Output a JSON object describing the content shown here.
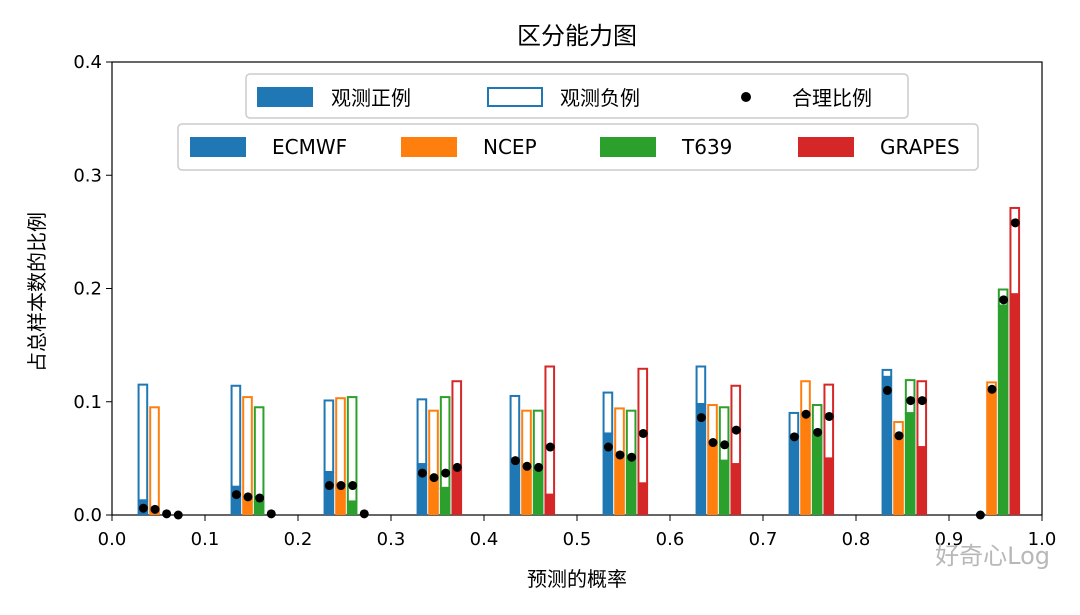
{
  "chart_data": {
    "type": "bar",
    "title": "区分能力图",
    "xlabel": "预测的概率",
    "ylabel": "占总样本数的比例",
    "xlim": [
      0.0,
      1.0
    ],
    "ylim": [
      0.0,
      0.4
    ],
    "xticks": [
      "0.0",
      "0.1",
      "0.2",
      "0.3",
      "0.4",
      "0.5",
      "0.6",
      "0.7",
      "0.8",
      "0.9",
      "1.0"
    ],
    "yticks": [
      "0.0",
      "0.1",
      "0.2",
      "0.3",
      "0.4"
    ],
    "bin_centers": [
      0.05,
      0.15,
      0.25,
      0.35,
      0.45,
      0.55,
      0.65,
      0.75,
      0.85,
      0.95
    ],
    "legend_stack": {
      "entries": [
        {
          "label": "观测正例",
          "style": "filled"
        },
        {
          "label": "观测负例",
          "style": "outline"
        },
        {
          "label": "合理比例",
          "style": "dot"
        }
      ],
      "position": "top"
    },
    "legend_models": {
      "entries": [
        "ECMWF",
        "NCEP",
        "T639",
        "GRAPES"
      ],
      "position": "upper-center"
    },
    "series": [
      {
        "name": "ECMWF",
        "color": "#1f77b4",
        "positive": [
          0.013,
          0.025,
          0.038,
          0.045,
          0.05,
          0.072,
          0.098,
          0.07,
          0.122,
          0.0
        ],
        "negative": [
          0.103,
          0.09,
          0.064,
          0.058,
          0.056,
          0.037,
          0.034,
          0.021,
          0.007,
          0.0
        ],
        "reasonable": [
          0.006,
          0.018,
          0.026,
          0.037,
          0.048,
          0.06,
          0.086,
          0.069,
          0.11,
          0.0
        ]
      },
      {
        "name": "NCEP",
        "color": "#ff7f0e",
        "positive": [
          0.004,
          0.014,
          0.024,
          0.032,
          0.04,
          0.055,
          0.062,
          0.088,
          0.07,
          0.11
        ],
        "negative": [
          0.092,
          0.091,
          0.08,
          0.061,
          0.053,
          0.04,
          0.036,
          0.031,
          0.013,
          0.008
        ],
        "reasonable": [
          0.005,
          0.016,
          0.026,
          0.033,
          0.043,
          0.053,
          0.064,
          0.089,
          0.07,
          0.111
        ]
      },
      {
        "name": "T639",
        "color": "#2ca02c",
        "positive": [
          0.0,
          0.012,
          0.012,
          0.024,
          0.04,
          0.05,
          0.048,
          0.07,
          0.09,
          0.185
        ],
        "negative": [
          0.0,
          0.084,
          0.093,
          0.081,
          0.053,
          0.043,
          0.048,
          0.028,
          0.03,
          0.015
        ],
        "reasonable": [
          0.001,
          0.015,
          0.026,
          0.037,
          0.042,
          0.051,
          0.062,
          0.073,
          0.101,
          0.19
        ]
      },
      {
        "name": "GRAPES",
        "color": "#d62728",
        "positive": [
          0.0,
          0.0,
          0.0,
          0.04,
          0.018,
          0.028,
          0.045,
          0.05,
          0.06,
          0.195
        ],
        "negative": [
          0.0,
          0.0,
          0.0,
          0.079,
          0.114,
          0.102,
          0.07,
          0.066,
          0.059,
          0.077
        ],
        "reasonable": [
          0.0,
          0.001,
          0.001,
          0.042,
          0.06,
          0.072,
          0.075,
          0.087,
          0.101,
          0.258
        ]
      }
    ]
  },
  "watermark": {
    "text": "好奇心Log"
  }
}
